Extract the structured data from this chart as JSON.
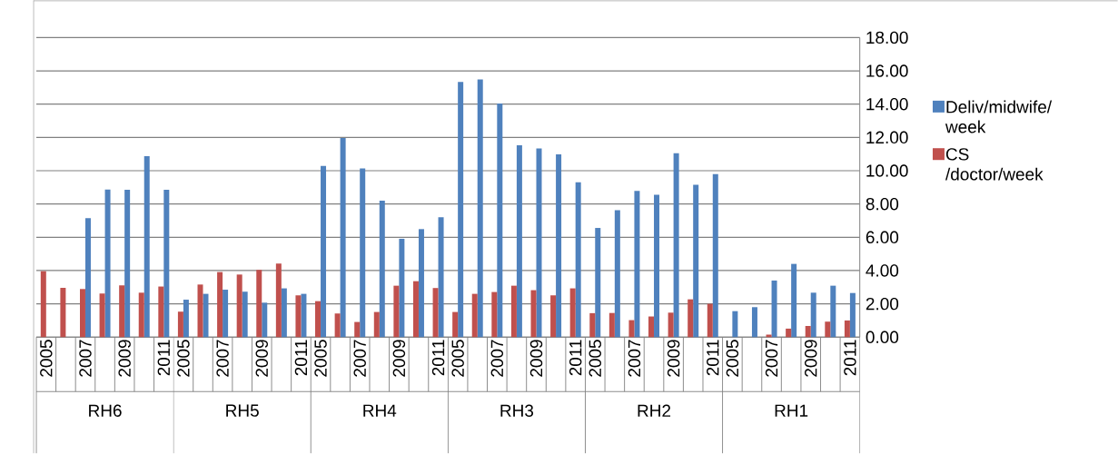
{
  "chart_data": {
    "type": "bar",
    "categories": [
      "2005",
      null,
      "2007",
      null,
      "2009",
      null,
      "2011",
      "2005",
      null,
      "2007",
      null,
      "2009",
      null,
      "2011",
      "2005",
      null,
      "2007",
      null,
      "2009",
      null,
      "2011",
      "2005",
      null,
      "2007",
      null,
      "2009",
      null,
      "2011",
      "2005",
      null,
      "2007",
      null,
      "2009",
      null,
      "2011",
      "2005",
      null,
      "2007",
      null,
      "2009",
      null,
      "2011"
    ],
    "series": [
      {
        "name": "Deliv/midwife/ week",
        "color": "#4f81bd",
        "values": [
          null,
          null,
          7.15,
          8.87,
          8.85,
          10.87,
          8.85,
          2.25,
          2.6,
          2.85,
          2.73,
          2.07,
          2.93,
          2.6,
          10.29,
          11.96,
          10.13,
          8.2,
          5.91,
          6.49,
          7.2,
          15.33,
          15.49,
          14.04,
          11.53,
          11.33,
          10.98,
          9.31,
          6.56,
          7.62,
          8.78,
          8.55,
          11.05,
          9.15,
          9.8,
          1.56,
          1.8,
          3.4,
          4.4,
          2.67,
          3.09,
          2.65
        ]
      },
      {
        "name": "CS /doctor/week",
        "color": "#c0504d",
        "values": [
          3.96,
          2.96,
          2.89,
          2.62,
          3.11,
          2.67,
          3.04,
          1.53,
          3.16,
          3.91,
          3.76,
          4.04,
          4.42,
          2.51,
          2.16,
          1.42,
          0.91,
          1.51,
          3.09,
          3.36,
          2.95,
          1.51,
          2.6,
          2.71,
          3.09,
          2.82,
          2.51,
          2.93,
          1.44,
          1.45,
          1.02,
          1.24,
          1.47,
          2.27,
          2.0,
          null,
          null,
          0.15,
          0.51,
          0.67,
          0.93,
          1.0
        ]
      }
    ],
    "annotations": [
      "RH6",
      "RH5",
      "RH4",
      "RH3",
      "RH2",
      "RH1"
    ],
    "ylim": [
      0,
      18
    ],
    "yticks": [
      {
        "value": 0,
        "label": "0.00"
      },
      {
        "value": 2,
        "label": "2.00"
      },
      {
        "value": 4,
        "label": "4.00"
      },
      {
        "value": 6,
        "label": "6.00"
      },
      {
        "value": 8,
        "label": "8.00"
      },
      {
        "value": 10,
        "label": "10.00"
      },
      {
        "value": 12,
        "label": "12.00"
      },
      {
        "value": 14,
        "label": "14.00"
      },
      {
        "value": 16,
        "label": "16.00"
      },
      {
        "value": 18,
        "label": "18.00"
      }
    ],
    "grid": "y",
    "legend": "right"
  }
}
